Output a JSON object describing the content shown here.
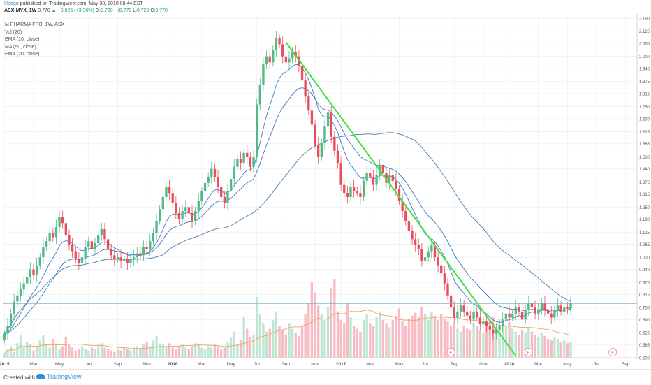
{
  "header": {
    "author": "Hodgo",
    "published": "published on TradingView.com, May 30, 2018 08:44 EST",
    "symbol": "ASX:MYX, 1W",
    "last": "0.770",
    "change": "+0.025 (+3.36%)",
    "o_label": "O:",
    "o": "0.720",
    "h_label": "H:",
    "h": "0.770",
    "l_label": "L:",
    "l": "0.720",
    "c_label": "C:",
    "c": "0.770"
  },
  "legend": [
    "M PHARMA FPO, 1W, ASX",
    "Vol (20)",
    "EMA (10, close)",
    "MA (50, close)",
    "EMA (20, close)"
  ],
  "footer": {
    "created": "Created with",
    "brand": "TradingView"
  },
  "colors": {
    "up": "#53b987",
    "down": "#eb4d5c",
    "ema": "#3a78c3",
    "ma": "#4a7aa8",
    "volAvg": "#f0a060",
    "trend": "#3fe03f"
  },
  "chart_data": {
    "type": "candlestick",
    "ylim": [
      0.5,
      2.19
    ],
    "yticks": [
      "0.500",
      "0.565",
      "0.625",
      "0.690",
      "0.750",
      "0.815",
      "0.875",
      "0.940",
      "1.000",
      "1.065",
      "1.125",
      "1.190",
      "1.250",
      "1.315",
      "1.375",
      "1.440",
      "1.500",
      "1.565",
      "1.625",
      "1.690",
      "1.750",
      "1.815",
      "1.875",
      "1.940",
      "2.000",
      "2.065",
      "2.125",
      "2.190"
    ],
    "xticks": [
      {
        "label": "2015",
        "week": 0,
        "bold": true
      },
      {
        "label": "Mar",
        "week": 9
      },
      {
        "label": "May",
        "week": 17
      },
      {
        "label": "Jul",
        "week": 26
      },
      {
        "label": "Sep",
        "week": 35
      },
      {
        "label": "Nov",
        "week": 44
      },
      {
        "label": "2016",
        "week": 52,
        "bold": true
      },
      {
        "label": "Mar",
        "week": 61
      },
      {
        "label": "May",
        "week": 70
      },
      {
        "label": "Jul",
        "week": 78
      },
      {
        "label": "Sep",
        "week": 87
      },
      {
        "label": "Nov",
        "week": 96
      },
      {
        "label": "2017",
        "week": 104,
        "bold": true
      },
      {
        "label": "Mar",
        "week": 113
      },
      {
        "label": "May",
        "week": 122
      },
      {
        "label": "Jul",
        "week": 130
      },
      {
        "label": "Sep",
        "week": 139
      },
      {
        "label": "Nov",
        "week": 148
      },
      {
        "label": "2018",
        "week": 156,
        "bold": true
      },
      {
        "label": "Mar",
        "week": 165
      },
      {
        "label": "May",
        "week": 174
      },
      {
        "label": "Jul",
        "week": 183
      },
      {
        "label": "Sep",
        "week": 192
      }
    ],
    "last_price": 0.77,
    "last_price_label": "0.770",
    "closes": [
      0.62,
      0.66,
      0.72,
      0.78,
      0.81,
      0.84,
      0.87,
      0.9,
      0.94,
      0.91,
      0.96,
      1.0,
      1.05,
      1.08,
      1.12,
      1.1,
      1.15,
      1.2,
      1.17,
      1.11,
      1.06,
      1.03,
      0.99,
      0.97,
      1.0,
      1.05,
      1.08,
      1.04,
      1.07,
      1.11,
      1.14,
      1.09,
      1.04,
      1.01,
      0.99,
      1.0,
      0.98,
      0.99,
      0.97,
      0.99,
      1.0,
      1.02,
      1.01,
      1.05,
      1.04,
      1.08,
      1.12,
      1.18,
      1.24,
      1.3,
      1.35,
      1.32,
      1.27,
      1.22,
      1.19,
      1.23,
      1.25,
      1.22,
      1.18,
      1.23,
      1.28,
      1.33,
      1.37,
      1.4,
      1.44,
      1.4,
      1.35,
      1.3,
      1.27,
      1.33,
      1.39,
      1.45,
      1.49,
      1.47,
      1.52,
      1.5,
      1.45,
      1.5,
      1.76,
      1.86,
      1.96,
      2.0,
      1.97,
      2.03,
      2.09,
      2.06,
      2.0,
      1.97,
      1.99,
      2.02,
      2.0,
      1.95,
      1.88,
      1.8,
      1.73,
      1.66,
      1.56,
      1.5,
      1.57,
      1.65,
      1.72,
      1.6,
      1.53,
      1.47,
      1.36,
      1.32,
      1.3,
      1.35,
      1.33,
      1.32,
      1.3,
      1.38,
      1.42,
      1.4,
      1.36,
      1.41,
      1.46,
      1.42,
      1.37,
      1.41,
      1.38,
      1.34,
      1.28,
      1.23,
      1.18,
      1.13,
      1.09,
      1.06,
      1.04,
      0.98,
      1.0,
      1.03,
      1.06,
      1.0,
      0.96,
      0.92,
      0.87,
      0.81,
      0.75,
      0.7,
      0.73,
      0.76,
      0.73,
      0.71,
      0.69,
      0.73,
      0.7,
      0.67,
      0.68,
      0.66,
      0.64,
      0.62,
      0.64,
      0.66,
      0.69,
      0.72,
      0.7,
      0.72,
      0.75,
      0.73,
      0.69,
      0.74,
      0.77,
      0.75,
      0.72,
      0.74,
      0.77,
      0.74,
      0.72,
      0.7,
      0.74,
      0.76,
      0.73,
      0.75,
      0.745,
      0.77
    ],
    "volumes": [
      0.3,
      0.6,
      0.8,
      0.4,
      1.0,
      1.6,
      0.7,
      1.1,
      0.9,
      0.5,
      0.8,
      1.2,
      1.6,
      0.9,
      0.7,
      1.3,
      1.0,
      0.6,
      0.8,
      1.4,
      0.9,
      0.7,
      0.5,
      0.6,
      0.8,
      0.6,
      0.5,
      0.7,
      0.6,
      0.8,
      1.0,
      0.7,
      0.6,
      0.5,
      0.4,
      0.6,
      0.5,
      0.7,
      0.6,
      0.5,
      0.7,
      0.8,
      0.6,
      0.9,
      1.1,
      0.8,
      1.2,
      1.5,
      1.0,
      0.9,
      0.8,
      1.0,
      0.7,
      0.6,
      0.8,
      0.9,
      0.7,
      0.6,
      0.8,
      1.0,
      0.9,
      0.7,
      0.6,
      0.8,
      0.7,
      0.9,
      0.8,
      0.6,
      0.7,
      1.1,
      1.4,
      1.8,
      0.9,
      1.2,
      2.8,
      2.0,
      1.4,
      1.6,
      4.2,
      3.0,
      2.4,
      1.8,
      2.0,
      2.6,
      3.2,
      2.2,
      1.9,
      1.6,
      2.4,
      2.0,
      1.7,
      1.5,
      2.2,
      3.0,
      3.8,
      5.2,
      4.5,
      3.6,
      3.0,
      2.6,
      3.5,
      4.8,
      5.4,
      3.2,
      2.6,
      2.4,
      3.8,
      2.8,
      2.2,
      2.0,
      1.8,
      2.6,
      3.0,
      2.4,
      2.2,
      2.8,
      3.2,
      2.6,
      2.4,
      2.1,
      2.6,
      2.9,
      3.4,
      2.5,
      2.2,
      2.7,
      2.9,
      3.1,
      2.8,
      3.5,
      3.0,
      2.6,
      3.2,
      2.9,
      2.6,
      3.0,
      2.7,
      2.5,
      2.2,
      2.4,
      2.0,
      1.8,
      2.2,
      2.0,
      1.9,
      2.4,
      2.2,
      1.9,
      1.7,
      2.3,
      2.6,
      2.8,
      2.0,
      1.8,
      2.5,
      2.2,
      2.4,
      2.0,
      1.8,
      1.6,
      1.9,
      1.7,
      2.1,
      1.8,
      1.6,
      1.4,
      1.7,
      1.5,
      1.3,
      1.2,
      1.4,
      1.3,
      1.1,
      1.2,
      1.0,
      1.1
    ],
    "trendline": {
      "from": {
        "week": 87,
        "price": 2.07
      },
      "to": {
        "week": 158,
        "price": 0.51
      }
    },
    "earnings_markers": [
      {
        "label": "E",
        "week": 138
      },
      {
        "label": "E",
        "week": 162
      },
      {
        "label": "E",
        "week": 188
      }
    ]
  }
}
